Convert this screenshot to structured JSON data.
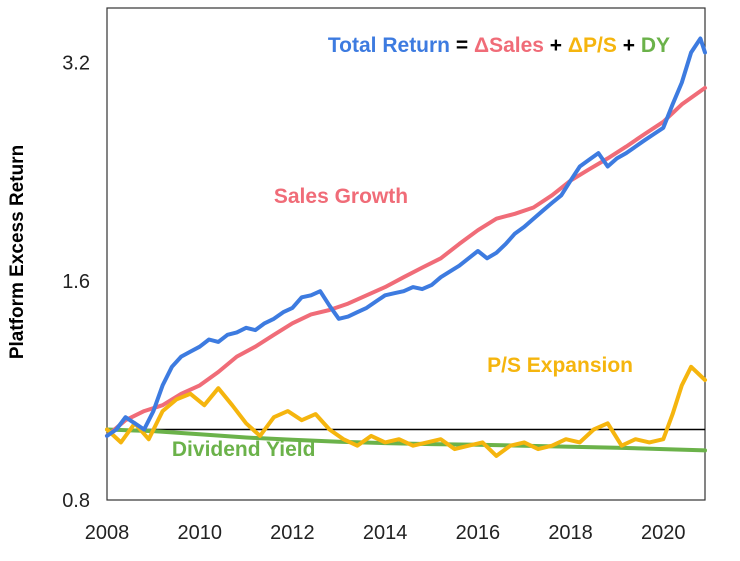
{
  "chart_data": {
    "type": "line",
    "title_parts": [
      {
        "text": "Total Return",
        "color": "#3d7be0"
      },
      {
        "text": " = ",
        "color": "#000000"
      },
      {
        "text": "ΔSales",
        "color": "#f06c78"
      },
      {
        "text": " + ",
        "color": "#000000"
      },
      {
        "text": "ΔP/S",
        "color": "#f5b50e"
      },
      {
        "text": " + ",
        "color": "#000000"
      },
      {
        "text": "DY",
        "color": "#6bb24a"
      }
    ],
    "ylabel": "Platform Excess Return",
    "yscale": "log",
    "ylim": [
      0.8,
      3.8
    ],
    "xlim": [
      2008,
      2020.9
    ],
    "xticks": [
      "2008",
      "2010",
      "2012",
      "2014",
      "2016",
      "2018",
      "2020"
    ],
    "yticks": [
      "0.8",
      "1.6",
      "3.2"
    ],
    "reference_line": 1.0,
    "annotations": [
      {
        "text": "Sales Growth",
        "color": "#f06c78",
        "x": 2011.6,
        "y": 2.05
      },
      {
        "text": "P/S Expansion",
        "color": "#f5b50e",
        "x": 2016.2,
        "y": 1.2
      },
      {
        "text": "Dividend Yield",
        "color": "#6bb24a",
        "x": 2009.4,
        "y": 0.92
      }
    ],
    "series": [
      {
        "name": "Total Return",
        "color": "#3d7be0",
        "x": [
          2008.0,
          2008.2,
          2008.4,
          2008.6,
          2008.8,
          2009.0,
          2009.2,
          2009.4,
          2009.6,
          2009.8,
          2010.0,
          2010.2,
          2010.4,
          2010.6,
          2010.8,
          2011.0,
          2011.2,
          2011.4,
          2011.6,
          2011.8,
          2012.0,
          2012.2,
          2012.4,
          2012.6,
          2012.8,
          2013.0,
          2013.2,
          2013.4,
          2013.6,
          2013.8,
          2014.0,
          2014.2,
          2014.4,
          2014.6,
          2014.8,
          2015.0,
          2015.2,
          2015.4,
          2015.6,
          2015.8,
          2016.0,
          2016.2,
          2016.4,
          2016.6,
          2016.8,
          2017.0,
          2017.2,
          2017.4,
          2017.6,
          2017.8,
          2018.0,
          2018.2,
          2018.4,
          2018.6,
          2018.8,
          2019.0,
          2019.2,
          2019.4,
          2019.6,
          2019.8,
          2020.0,
          2020.2,
          2020.4,
          2020.6,
          2020.8,
          2020.9
        ],
        "values": [
          0.98,
          1.0,
          1.04,
          1.02,
          1.0,
          1.06,
          1.15,
          1.22,
          1.26,
          1.28,
          1.3,
          1.33,
          1.32,
          1.35,
          1.36,
          1.38,
          1.37,
          1.4,
          1.42,
          1.45,
          1.47,
          1.52,
          1.53,
          1.55,
          1.48,
          1.42,
          1.43,
          1.45,
          1.47,
          1.5,
          1.53,
          1.54,
          1.55,
          1.57,
          1.56,
          1.58,
          1.62,
          1.65,
          1.68,
          1.72,
          1.76,
          1.72,
          1.75,
          1.8,
          1.86,
          1.9,
          1.95,
          2.0,
          2.05,
          2.1,
          2.2,
          2.3,
          2.35,
          2.4,
          2.3,
          2.36,
          2.4,
          2.45,
          2.5,
          2.55,
          2.6,
          2.8,
          3.0,
          3.3,
          3.45,
          3.3
        ]
      },
      {
        "name": "Sales Growth",
        "color": "#f06c78",
        "x": [
          2008.0,
          2008.4,
          2008.8,
          2009.2,
          2009.6,
          2010.0,
          2010.4,
          2010.8,
          2011.2,
          2011.6,
          2012.0,
          2012.4,
          2012.8,
          2013.2,
          2013.6,
          2014.0,
          2014.4,
          2014.8,
          2015.2,
          2015.6,
          2016.0,
          2016.4,
          2016.8,
          2017.2,
          2017.6,
          2018.0,
          2018.4,
          2018.8,
          2019.2,
          2019.6,
          2020.0,
          2020.4,
          2020.9
        ],
        "values": [
          0.98,
          1.03,
          1.06,
          1.08,
          1.12,
          1.15,
          1.2,
          1.26,
          1.3,
          1.35,
          1.4,
          1.44,
          1.46,
          1.49,
          1.53,
          1.57,
          1.62,
          1.67,
          1.72,
          1.8,
          1.88,
          1.95,
          1.98,
          2.02,
          2.1,
          2.2,
          2.28,
          2.36,
          2.45,
          2.55,
          2.65,
          2.8,
          2.95
        ]
      },
      {
        "name": "P/S Expansion",
        "color": "#f5b50e",
        "x": [
          2008.0,
          2008.3,
          2008.6,
          2008.9,
          2009.2,
          2009.5,
          2009.8,
          2010.1,
          2010.4,
          2010.7,
          2011.0,
          2011.3,
          2011.6,
          2011.9,
          2012.2,
          2012.5,
          2012.8,
          2013.1,
          2013.4,
          2013.7,
          2014.0,
          2014.3,
          2014.6,
          2014.9,
          2015.2,
          2015.5,
          2015.8,
          2016.1,
          2016.4,
          2016.7,
          2017.0,
          2017.3,
          2017.6,
          2017.9,
          2018.2,
          2018.5,
          2018.8,
          2019.1,
          2019.4,
          2019.7,
          2020.0,
          2020.2,
          2020.4,
          2020.6,
          2020.9
        ],
        "values": [
          1.0,
          0.96,
          1.02,
          0.97,
          1.06,
          1.1,
          1.12,
          1.08,
          1.14,
          1.08,
          1.02,
          0.98,
          1.04,
          1.06,
          1.03,
          1.05,
          1.0,
          0.97,
          0.95,
          0.98,
          0.96,
          0.97,
          0.95,
          0.96,
          0.97,
          0.94,
          0.95,
          0.96,
          0.92,
          0.95,
          0.96,
          0.94,
          0.95,
          0.97,
          0.96,
          1.0,
          1.02,
          0.95,
          0.97,
          0.96,
          0.97,
          1.05,
          1.15,
          1.22,
          1.17
        ]
      },
      {
        "name": "Dividend Yield",
        "color": "#6bb24a",
        "x": [
          2008.0,
          2009.0,
          2010.0,
          2011.0,
          2012.0,
          2013.0,
          2014.0,
          2015.0,
          2016.0,
          2017.0,
          2018.0,
          2019.0,
          2020.0,
          2020.9
        ],
        "values": [
          1.0,
          0.995,
          0.985,
          0.975,
          0.968,
          0.962,
          0.958,
          0.955,
          0.953,
          0.95,
          0.947,
          0.944,
          0.94,
          0.936
        ]
      }
    ]
  }
}
